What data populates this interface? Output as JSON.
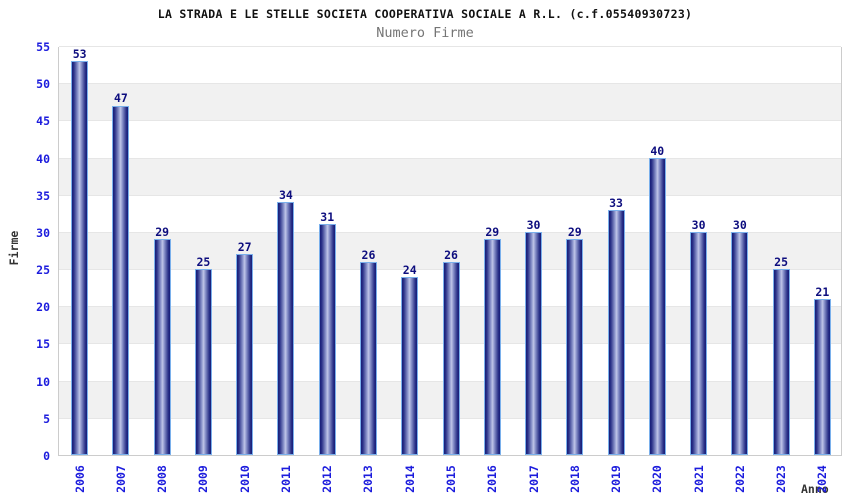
{
  "chart_data": {
    "type": "bar",
    "title": "LA STRADA E LE STELLE SOCIETA COOPERATIVA SOCIALE A R.L. (c.f.05540930723)",
    "subtitle": "Numero Firme",
    "xlabel": "Anno",
    "ylabel": "Firme",
    "categories": [
      "2006",
      "2007",
      "2008",
      "2009",
      "2010",
      "2011",
      "2012",
      "2013",
      "2014",
      "2015",
      "2016",
      "2017",
      "2018",
      "2019",
      "2020",
      "2021",
      "2022",
      "2023",
      "2024"
    ],
    "values": [
      53,
      47,
      29,
      25,
      27,
      34,
      31,
      26,
      24,
      26,
      29,
      30,
      29,
      33,
      40,
      30,
      30,
      25,
      21
    ],
    "ylim": [
      0,
      55
    ],
    "y_ticks": [
      0,
      5,
      10,
      15,
      20,
      25,
      30,
      35,
      40,
      45,
      50,
      55
    ],
    "grid": "horizontal-bands",
    "legend": "none",
    "colors": {
      "title": "#111111",
      "subtitle": "#757575",
      "axis_title": "#333333",
      "tick_label_blue": "#1c1cdd",
      "value_label_navy": "#0d0d7e",
      "bar_dark": "#161c78",
      "bar_light": "#c0c6e8",
      "bar_outline": "#7ab0ec",
      "band_gray": "#f1f1f1",
      "plot_border": "#cccccc",
      "background": "#ffffff"
    }
  }
}
